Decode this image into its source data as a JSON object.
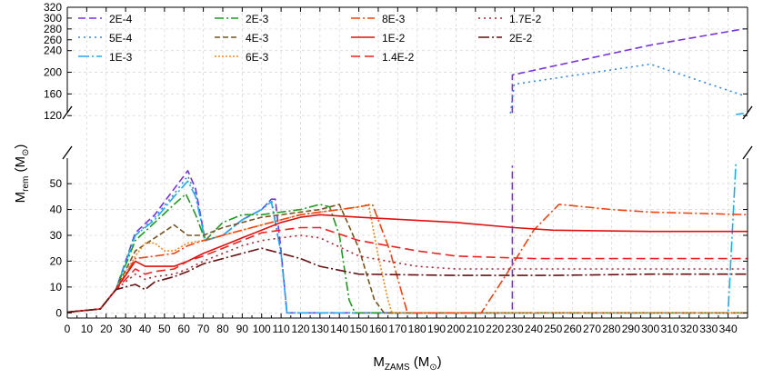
{
  "chart_data": {
    "type": "line",
    "xlabel": "M_ZAMS (M_⊙)",
    "ylabel": "M_rem (M_⊙)",
    "xlim": [
      0,
      350
    ],
    "xticks": [
      0,
      10,
      20,
      30,
      40,
      50,
      60,
      70,
      80,
      90,
      100,
      110,
      120,
      130,
      140,
      150,
      160,
      170,
      180,
      190,
      200,
      210,
      220,
      230,
      240,
      250,
      260,
      270,
      280,
      290,
      300,
      310,
      320,
      330,
      340
    ],
    "ylim_lower": [
      -2,
      62
    ],
    "ylim_upper": [
      112,
      320
    ],
    "yticks_lower": [
      0,
      10,
      20,
      30,
      40,
      50
    ],
    "yticks_upper": [
      120,
      160,
      200,
      240,
      280,
      320
    ],
    "yticks_upper_minor": [
      240,
      260,
      280,
      300,
      320
    ],
    "broken_y_axis": true,
    "grid": true,
    "legend_position": "top-left",
    "legend_columns": 4,
    "series": [
      {
        "name": "2E-4",
        "color": "#7733dd",
        "dash": "8,4",
        "points": [
          [
            0,
            0.3
          ],
          [
            10,
            1
          ],
          [
            17,
            1.5
          ],
          [
            25,
            9
          ],
          [
            35,
            31
          ],
          [
            45,
            38
          ],
          [
            55,
            48
          ],
          [
            62,
            55
          ],
          [
            66,
            48
          ],
          [
            71,
            28
          ],
          [
            80,
            30
          ],
          [
            90,
            36
          ],
          [
            100,
            40
          ],
          [
            105,
            44
          ],
          [
            107,
            44
          ],
          [
            110,
            24
          ],
          [
            113,
            0
          ],
          [
            229,
            0
          ],
          [
            229,
            57
          ],
          [
            229,
            "BRK"
          ],
          [
            229,
            125
          ],
          [
            229,
            195
          ],
          [
            300,
            250
          ],
          [
            348,
            280
          ]
        ]
      },
      {
        "name": "5E-4",
        "color": "#3388dd",
        "dash": "2,4",
        "points": [
          [
            0,
            0.3
          ],
          [
            10,
            1
          ],
          [
            17,
            1.5
          ],
          [
            25,
            9
          ],
          [
            35,
            30
          ],
          [
            45,
            37
          ],
          [
            55,
            46
          ],
          [
            62,
            53
          ],
          [
            66,
            46
          ],
          [
            71,
            28
          ],
          [
            80,
            30
          ],
          [
            90,
            36
          ],
          [
            100,
            40
          ],
          [
            105,
            44
          ],
          [
            110,
            23
          ],
          [
            113,
            0
          ],
          [
            228,
            0
          ],
          [
            228,
            "BRK"
          ],
          [
            228,
            124
          ],
          [
            230,
            178
          ],
          [
            300,
            215
          ],
          [
            348,
            157
          ]
        ]
      },
      {
        "name": "1E-3",
        "color": "#22aaee",
        "dash": "12,3,2,3",
        "points": [
          [
            0,
            0.3
          ],
          [
            10,
            1
          ],
          [
            17,
            1.5
          ],
          [
            25,
            9
          ],
          [
            35,
            30
          ],
          [
            45,
            36
          ],
          [
            55,
            45
          ],
          [
            62,
            51
          ],
          [
            66,
            45
          ],
          [
            71,
            28
          ],
          [
            80,
            30
          ],
          [
            90,
            36
          ],
          [
            100,
            40
          ],
          [
            105,
            43
          ],
          [
            110,
            23
          ],
          [
            113,
            0
          ],
          [
            340,
            0
          ],
          [
            344,
            58
          ],
          [
            344,
            "BRK"
          ],
          [
            344,
            122
          ],
          [
            348,
            124
          ]
        ]
      },
      {
        "name": "2E-3",
        "color": "#229922",
        "dash": "10,3,2,3",
        "points": [
          [
            0,
            0.3
          ],
          [
            10,
            1
          ],
          [
            17,
            1.5
          ],
          [
            25,
            9
          ],
          [
            35,
            28
          ],
          [
            45,
            35
          ],
          [
            55,
            42
          ],
          [
            61,
            46
          ],
          [
            66,
            38
          ],
          [
            71,
            28
          ],
          [
            80,
            35
          ],
          [
            90,
            38
          ],
          [
            100,
            38
          ],
          [
            110,
            39
          ],
          [
            120,
            40
          ],
          [
            130,
            42
          ],
          [
            135,
            41
          ],
          [
            140,
            30
          ],
          [
            145,
            5
          ],
          [
            148,
            0
          ],
          [
            350,
            0
          ]
        ]
      },
      {
        "name": "4E-3",
        "color": "#775522",
        "dash": "6,3",
        "points": [
          [
            0,
            0.3
          ],
          [
            10,
            1
          ],
          [
            17,
            1.5
          ],
          [
            25,
            9
          ],
          [
            35,
            24
          ],
          [
            45,
            29
          ],
          [
            55,
            34
          ],
          [
            62,
            30
          ],
          [
            70,
            30
          ],
          [
            80,
            33
          ],
          [
            90,
            35
          ],
          [
            100,
            37
          ],
          [
            110,
            38
          ],
          [
            120,
            39
          ],
          [
            130,
            40
          ],
          [
            140,
            42
          ],
          [
            150,
            25
          ],
          [
            158,
            5
          ],
          [
            163,
            0
          ],
          [
            350,
            0
          ]
        ]
      },
      {
        "name": "6E-3",
        "color": "#ee8822",
        "dash": "2,2",
        "points": [
          [
            0,
            0.3
          ],
          [
            10,
            1
          ],
          [
            17,
            1.5
          ],
          [
            25,
            9
          ],
          [
            35,
            22
          ],
          [
            40,
            27
          ],
          [
            45,
            27
          ],
          [
            50,
            24
          ],
          [
            55,
            24
          ],
          [
            62,
            27
          ],
          [
            70,
            28
          ],
          [
            80,
            30
          ],
          [
            90,
            32
          ],
          [
            100,
            34
          ],
          [
            110,
            36
          ],
          [
            120,
            38
          ],
          [
            130,
            39
          ],
          [
            140,
            40
          ],
          [
            150,
            41
          ],
          [
            155,
            42
          ],
          [
            160,
            22
          ],
          [
            165,
            5
          ],
          [
            167,
            0
          ],
          [
            350,
            0
          ]
        ]
      },
      {
        "name": "8E-3",
        "color": "#ee4411",
        "dash": "10,3,2,3",
        "points": [
          [
            0,
            0.3
          ],
          [
            10,
            1
          ],
          [
            17,
            1.5
          ],
          [
            25,
            9
          ],
          [
            35,
            21
          ],
          [
            45,
            22
          ],
          [
            55,
            23
          ],
          [
            62,
            26
          ],
          [
            70,
            28
          ],
          [
            80,
            30
          ],
          [
            90,
            32
          ],
          [
            100,
            34
          ],
          [
            110,
            36
          ],
          [
            120,
            38
          ],
          [
            130,
            39
          ],
          [
            140,
            40
          ],
          [
            150,
            41
          ],
          [
            157,
            42
          ],
          [
            166,
            24
          ],
          [
            175,
            0
          ],
          [
            213,
            0
          ],
          [
            226,
            15
          ],
          [
            240,
            32
          ],
          [
            253,
            42
          ],
          [
            280,
            40
          ],
          [
            300,
            39
          ],
          [
            350,
            38
          ]
        ]
      },
      {
        "name": "1E-2",
        "color": "#dd1111",
        "dash": "",
        "points": [
          [
            0,
            0.3
          ],
          [
            10,
            1
          ],
          [
            17,
            1.5
          ],
          [
            25,
            9
          ],
          [
            35,
            20
          ],
          [
            40,
            18
          ],
          [
            45,
            18
          ],
          [
            55,
            18
          ],
          [
            62,
            20
          ],
          [
            70,
            23
          ],
          [
            80,
            26
          ],
          [
            90,
            29
          ],
          [
            100,
            32
          ],
          [
            110,
            35
          ],
          [
            120,
            37
          ],
          [
            130,
            38
          ],
          [
            150,
            37
          ],
          [
            200,
            35
          ],
          [
            230,
            33
          ],
          [
            250,
            32
          ],
          [
            300,
            31.5
          ],
          [
            350,
            31.5
          ]
        ]
      },
      {
        "name": "1.4E-2",
        "color": "#ee2222",
        "dash": "10,5",
        "points": [
          [
            0,
            0.3
          ],
          [
            10,
            1
          ],
          [
            17,
            1.5
          ],
          [
            25,
            9
          ],
          [
            35,
            17
          ],
          [
            40,
            15
          ],
          [
            45,
            16
          ],
          [
            55,
            17
          ],
          [
            62,
            20
          ],
          [
            70,
            22
          ],
          [
            80,
            25
          ],
          [
            90,
            28
          ],
          [
            100,
            31
          ],
          [
            110,
            32
          ],
          [
            120,
            33
          ],
          [
            130,
            33
          ],
          [
            150,
            28
          ],
          [
            180,
            24
          ],
          [
            200,
            22
          ],
          [
            240,
            21
          ],
          [
            300,
            21
          ],
          [
            350,
            21
          ]
        ]
      },
      {
        "name": "1.7E-2",
        "color": "#aa2233",
        "dash": "2,4",
        "points": [
          [
            0,
            0.3
          ],
          [
            10,
            1
          ],
          [
            17,
            1.5
          ],
          [
            25,
            9
          ],
          [
            35,
            15
          ],
          [
            40,
            13
          ],
          [
            45,
            14
          ],
          [
            55,
            15
          ],
          [
            62,
            17
          ],
          [
            70,
            20
          ],
          [
            80,
            23
          ],
          [
            90,
            26
          ],
          [
            100,
            28
          ],
          [
            110,
            29
          ],
          [
            120,
            30
          ],
          [
            130,
            29
          ],
          [
            150,
            22
          ],
          [
            180,
            18
          ],
          [
            200,
            17
          ],
          [
            240,
            17
          ],
          [
            300,
            17
          ],
          [
            350,
            17
          ]
        ]
      },
      {
        "name": "2E-2",
        "color": "#661111",
        "dash": "12,3,2,3",
        "points": [
          [
            0,
            0.3
          ],
          [
            10,
            1
          ],
          [
            17,
            1.5
          ],
          [
            25,
            9
          ],
          [
            35,
            11
          ],
          [
            40,
            9
          ],
          [
            45,
            12
          ],
          [
            55,
            14
          ],
          [
            62,
            16
          ],
          [
            70,
            19
          ],
          [
            80,
            21
          ],
          [
            90,
            23
          ],
          [
            100,
            25
          ],
          [
            110,
            23
          ],
          [
            120,
            21
          ],
          [
            130,
            18
          ],
          [
            150,
            15
          ],
          [
            200,
            14.5
          ],
          [
            250,
            14.5
          ],
          [
            300,
            15
          ],
          [
            350,
            15
          ]
        ]
      }
    ]
  }
}
